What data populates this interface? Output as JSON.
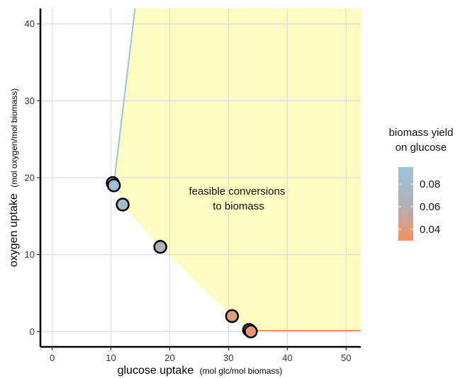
{
  "chart_data": {
    "type": "scatter",
    "xlabel": "glucose uptake",
    "xlabel_unit": "(mol glc/mol biomass)",
    "ylabel": "oxygen uptake",
    "ylabel_unit": "(mol oxygen/mol biomass)",
    "xlim": [
      -2,
      52.5
    ],
    "ylim": [
      -2,
      42
    ],
    "x_ticks": [
      0,
      10,
      20,
      30,
      40,
      50
    ],
    "y_ticks": [
      0,
      10,
      20,
      30,
      40
    ],
    "x_tick_labels": [
      "0",
      "10",
      "20",
      "30",
      "40",
      "50"
    ],
    "y_tick_labels": [
      "0",
      "10",
      "20",
      "30",
      "40"
    ],
    "grid": true,
    "annotation": {
      "lines": [
        "feasible conversions",
        "to biomass"
      ],
      "x": 31.7,
      "y": 17.8
    },
    "feasible_region": {
      "color": "#fdfbbf",
      "boundary": [
        [
          14.1,
          42
        ],
        [
          10.5,
          19.2
        ],
        [
          12.0,
          16.5
        ],
        [
          18.4,
          11.0
        ],
        [
          30.6,
          2.0
        ],
        [
          33.8,
          0.1
        ],
        [
          52.5,
          0.1
        ],
        [
          52.5,
          42
        ]
      ]
    },
    "edges": [
      {
        "from": [
          10.5,
          19.2
        ],
        "to": [
          14.1,
          42
        ],
        "color": "#9fc3dd"
      },
      {
        "from": [
          33.8,
          0.1
        ],
        "to": [
          52.5,
          0.1
        ],
        "color": "#f5925f"
      }
    ],
    "points": [
      {
        "x": 10.3,
        "y": 19.3,
        "yield": 0.09
      },
      {
        "x": 10.5,
        "y": 19.0,
        "yield": 0.089
      },
      {
        "x": 12.0,
        "y": 16.5,
        "yield": 0.077
      },
      {
        "x": 18.4,
        "y": 11.0,
        "yield": 0.062
      },
      {
        "x": 30.6,
        "y": 2.0,
        "yield": 0.042
      },
      {
        "x": 33.5,
        "y": 0.2,
        "yield": 0.038
      },
      {
        "x": 33.8,
        "y": 0.0,
        "yield": 0.037
      }
    ],
    "legend": {
      "title_lines": [
        "biomass yield",
        "on glucose"
      ],
      "placement": "right",
      "min": 0.03,
      "max": 0.095,
      "color_low": "#f5925f",
      "color_mid": "#b0b0b8",
      "color_high": "#9fc3dd",
      "ticks": [
        0.08,
        0.06,
        0.04
      ],
      "tick_labels": [
        "0.08",
        "0.06",
        "0.04"
      ]
    }
  }
}
